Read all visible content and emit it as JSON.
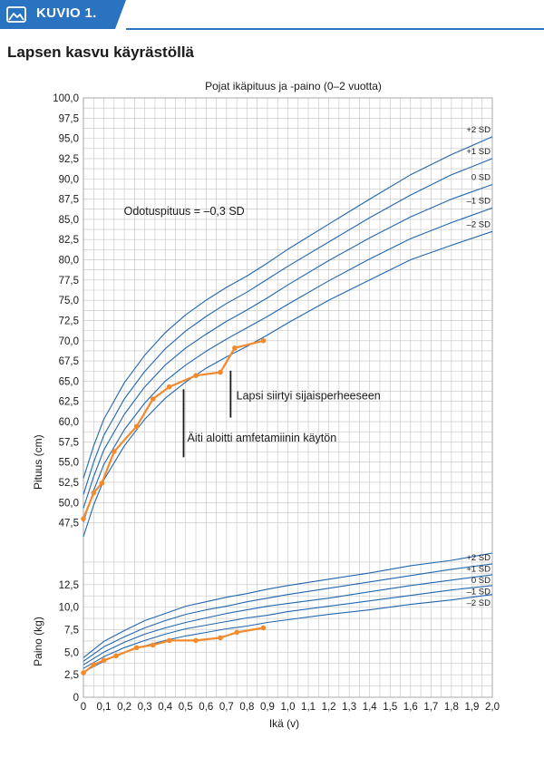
{
  "banner": {
    "label": "KUVIO 1.",
    "icon": "image-icon",
    "color": "#2a73c0"
  },
  "page_title": "Lapsen kasvu käyrästöllä",
  "chart_data": {
    "type": "line",
    "title": "Pojat ikäpituus ja -paino (0–2 vuotta)",
    "xlabel": "Ikä (v)",
    "xlim": [
      0,
      2
    ],
    "x_ticks": [
      "0",
      "0,1",
      "0,2",
      "0,3",
      "0,4",
      "0,5",
      "0,6",
      "0,7",
      "0,8",
      "0,9",
      "1,0",
      "1,1",
      "1,2",
      "1,3",
      "1,4",
      "1,5",
      "1,6",
      "1,7",
      "1,8",
      "1,9",
      "2,0"
    ],
    "colors": {
      "reference": "#2166b0",
      "child": "#f28a2e",
      "grid": "#c4c4c4"
    },
    "length_panel": {
      "ylabel": "Pituus (cm)",
      "ylim": [
        46,
        100
      ],
      "y_ticks": [
        "47,5",
        "50,0",
        "52,5",
        "55,0",
        "57,5",
        "60,0",
        "62,5",
        "65,0",
        "67,5",
        "70,0",
        "72,5",
        "75,0",
        "77,5",
        "80,0",
        "82,5",
        "85,0",
        "87,5",
        "90,0",
        "92,5",
        "95,0",
        "97,5",
        "100,0"
      ],
      "reference_x": [
        0,
        0.05,
        0.1,
        0.2,
        0.3,
        0.4,
        0.5,
        0.6,
        0.7,
        0.8,
        0.9,
        1.0,
        1.2,
        1.4,
        1.6,
        1.8,
        2.0
      ],
      "series": [
        {
          "name": "+2 SD",
          "values": [
            53.0,
            57.0,
            60.3,
            64.8,
            68.2,
            71.0,
            73.2,
            75.0,
            76.6,
            78.0,
            79.6,
            81.3,
            84.4,
            87.5,
            90.5,
            93.0,
            95.2
          ]
        },
        {
          "name": "+1 SD",
          "values": [
            51.0,
            55.0,
            58.3,
            62.8,
            66.2,
            69.0,
            71.2,
            73.0,
            74.6,
            76.0,
            77.6,
            79.2,
            82.2,
            85.2,
            88.0,
            90.5,
            92.5
          ]
        },
        {
          "name": "0 SD",
          "values": [
            49.3,
            53.2,
            56.5,
            60.9,
            64.3,
            67.0,
            69.1,
            70.8,
            72.4,
            73.8,
            75.3,
            76.9,
            79.9,
            82.7,
            85.3,
            87.5,
            89.3
          ]
        },
        {
          "name": "–1 SD",
          "values": [
            47.6,
            51.5,
            54.7,
            59.0,
            62.3,
            65.0,
            67.0,
            68.7,
            70.2,
            71.6,
            73.0,
            74.5,
            77.4,
            80.1,
            82.6,
            84.6,
            86.4
          ]
        },
        {
          "name": "–2 SD",
          "values": [
            45.8,
            49.7,
            52.8,
            57.0,
            60.3,
            62.9,
            64.9,
            66.6,
            68.0,
            69.3,
            70.7,
            72.2,
            75.0,
            77.5,
            80.0,
            81.8,
            83.5
          ]
        }
      ],
      "child": {
        "x": [
          0.0,
          0.05,
          0.09,
          0.15,
          0.26,
          0.34,
          0.42,
          0.55,
          0.67,
          0.74,
          0.88
        ],
        "values": [
          48.0,
          51.2,
          52.4,
          56.3,
          59.4,
          62.8,
          64.3,
          65.7,
          66.1,
          69.1,
          70.0
        ]
      },
      "annotations": [
        {
          "text": "Odotuspituus = –0,3 SD",
          "x": 0.22,
          "y": 86.0
        },
        {
          "text": "Lapsi siirtyi sijaisperheeseen",
          "x": 0.77,
          "y": 63.2,
          "marker_x": 0.72,
          "marker_y": [
            60.5,
            66.3
          ]
        },
        {
          "text": "Äiti aloitti amfetamiinin käytön",
          "x": 0.53,
          "y": 58.0,
          "marker_x": 0.49,
          "marker_y": [
            55.6,
            64.0
          ]
        }
      ]
    },
    "weight_panel": {
      "ylabel": "Paino (kg)",
      "ylim": [
        0,
        16
      ],
      "y_ticks": [
        "0",
        "2,5",
        "5,0",
        "7,5",
        "10,0",
        "12,5"
      ],
      "reference_x": [
        0,
        0.1,
        0.2,
        0.3,
        0.4,
        0.5,
        0.6,
        0.7,
        0.8,
        0.9,
        1.0,
        1.2,
        1.4,
        1.6,
        1.8,
        2.0
      ],
      "series": [
        {
          "name": "+2 SD",
          "values": [
            4.4,
            6.2,
            7.4,
            8.5,
            9.3,
            10.1,
            10.6,
            11.1,
            11.5,
            12.0,
            12.4,
            13.1,
            13.8,
            14.6,
            15.2,
            16.0
          ]
        },
        {
          "name": "+1 SD",
          "values": [
            4.0,
            5.6,
            6.7,
            7.7,
            8.5,
            9.2,
            9.7,
            10.1,
            10.6,
            11.0,
            11.4,
            12.1,
            12.8,
            13.5,
            14.2,
            14.8
          ]
        },
        {
          "name": "0 SD",
          "values": [
            3.6,
            5.0,
            6.1,
            7.0,
            7.7,
            8.3,
            8.8,
            9.3,
            9.7,
            10.1,
            10.4,
            11.0,
            11.7,
            12.4,
            13.0,
            13.6
          ]
        },
        {
          "name": "–1 SD",
          "values": [
            3.2,
            4.5,
            5.5,
            6.3,
            7.0,
            7.6,
            8.0,
            8.4,
            8.8,
            9.1,
            9.5,
            10.1,
            10.7,
            11.3,
            11.9,
            12.4
          ]
        },
        {
          "name": "–2 SD",
          "values": [
            2.8,
            4.0,
            5.0,
            5.7,
            6.3,
            6.8,
            7.2,
            7.6,
            7.9,
            8.3,
            8.6,
            9.2,
            9.7,
            10.3,
            10.8,
            11.4
          ]
        }
      ],
      "child": {
        "x": [
          0.0,
          0.05,
          0.1,
          0.16,
          0.26,
          0.34,
          0.42,
          0.55,
          0.67,
          0.75,
          0.88
        ],
        "values": [
          2.7,
          3.6,
          4.1,
          4.6,
          5.5,
          5.8,
          6.3,
          6.3,
          6.6,
          7.2,
          7.7
        ]
      }
    }
  }
}
